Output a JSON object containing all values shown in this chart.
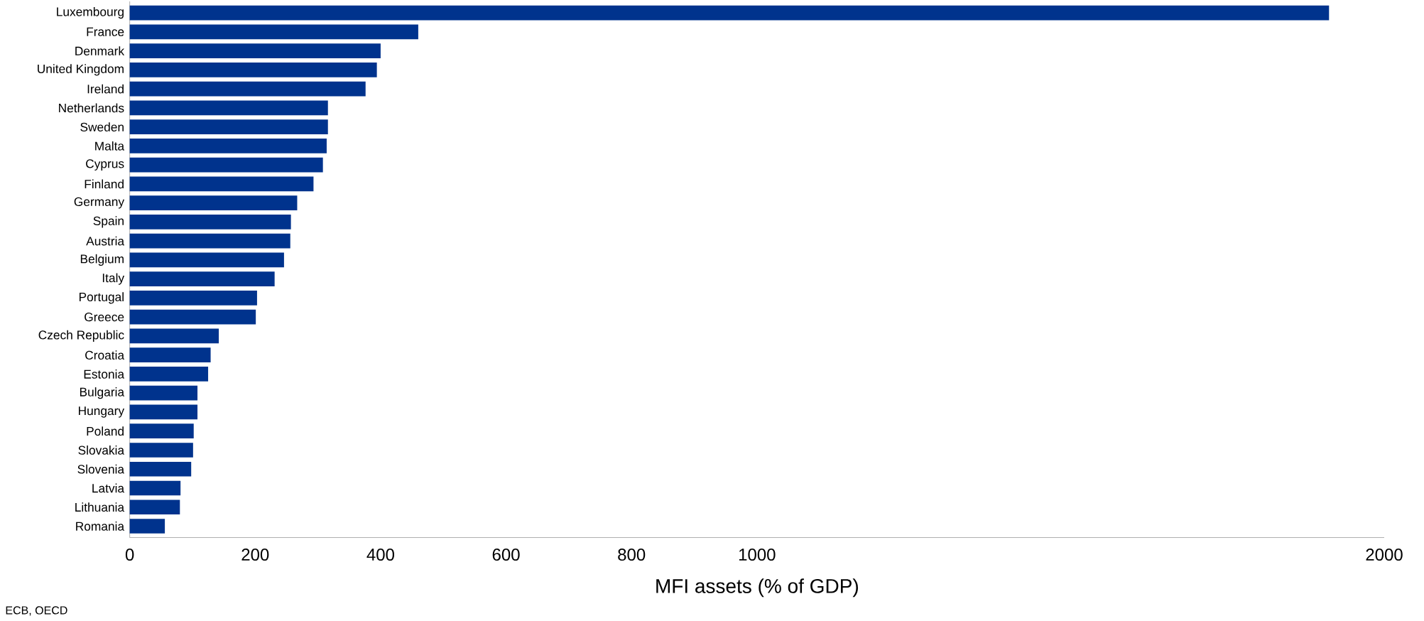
{
  "chart_data": {
    "type": "bar",
    "orientation": "horizontal",
    "xlabel": "MFI assets (% of GDP)",
    "categories": [
      "Luxembourg",
      "France",
      "Denmark",
      "United Kingdom",
      "Ireland",
      "Netherlands",
      "Sweden",
      "Malta",
      "Cyprus",
      "Finland",
      "Germany",
      "Spain",
      "Austria",
      "Belgium",
      "Italy",
      "Portugal",
      "Greece",
      "Czech Republic",
      "Croatia",
      "Estonia",
      "Bulgaria",
      "Hungary",
      "Poland",
      "Slovakia",
      "Slovenia",
      "Latvia",
      "Lithuania",
      "Romania"
    ],
    "values": [
      1912,
      460,
      400,
      394,
      376,
      316,
      316,
      314,
      308,
      293,
      267,
      257,
      256,
      246,
      231,
      203,
      201,
      142,
      129,
      125,
      108,
      108,
      102,
      101,
      98,
      81,
      80,
      56
    ],
    "color": "#00338d",
    "xlim": [
      0,
      2000
    ],
    "xticks": [
      0,
      200,
      400,
      600,
      800,
      1000,
      2000
    ],
    "annotations": [
      "ECB, OECD"
    ]
  }
}
